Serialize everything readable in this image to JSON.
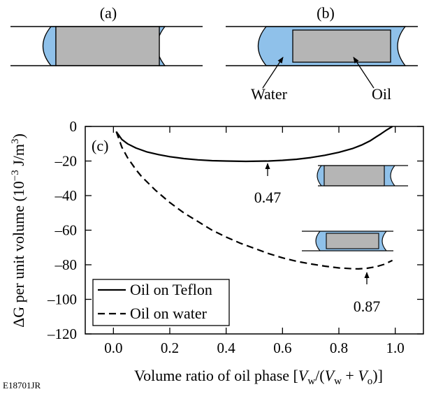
{
  "figure_id": "E18701JR",
  "panels": {
    "a": {
      "label": "(a)"
    },
    "b": {
      "label": "(b)",
      "water_label": "Water",
      "oil_label": "Oil"
    },
    "c": {
      "label": "(c)"
    }
  },
  "colors": {
    "water": "#8fc1ea",
    "oil": "#b5b5b5",
    "frame": "#000000"
  },
  "chart_data": {
    "type": "line",
    "xlabel_parts": {
      "prefix": "Volume ratio of oil phase [",
      "V1": "V",
      "sub1": "w",
      "mid": "/(",
      "V2": "V",
      "sub2": "w",
      "plus": " + ",
      "V3": "V",
      "sub3": "o",
      "suffix": ")]"
    },
    "ylabel_parts": {
      "main": "ΔG per unit volume (10",
      "exp1": "−3",
      "mid": " J/m",
      "exp2": "3",
      "end": ")"
    },
    "xlim": [
      -0.1,
      1.1
    ],
    "ylim": [
      -120,
      0
    ],
    "xticks": [
      0.0,
      0.2,
      0.4,
      0.6,
      0.8,
      1.0
    ],
    "xtick_labels": [
      "0.0",
      "0.2",
      "0.4",
      "0.6",
      "0.8",
      "1.0"
    ],
    "yticks": [
      0,
      -20,
      -40,
      -60,
      -80,
      -100,
      -120
    ],
    "ytick_labels": [
      "0",
      "–20",
      "–40",
      "–60",
      "–80",
      "–100",
      "–120"
    ],
    "legend_position": "bottom-left",
    "series": [
      {
        "name": "Oil on Teflon",
        "style": "solid",
        "x": [
          0.01,
          0.03,
          0.05,
          0.08,
          0.12,
          0.16,
          0.2,
          0.25,
          0.3,
          0.35,
          0.4,
          0.47,
          0.55,
          0.6,
          0.65,
          0.7,
          0.75,
          0.8,
          0.85,
          0.88,
          0.91,
          0.93,
          0.95,
          0.97,
          0.99
        ],
        "y": [
          -3,
          -7.5,
          -10,
          -12.5,
          -14.8,
          -16.3,
          -17.5,
          -18.6,
          -19.3,
          -19.8,
          -20.0,
          -20.2,
          -20.0,
          -19.6,
          -19.0,
          -18.0,
          -16.7,
          -15.0,
          -12.7,
          -10.8,
          -8.4,
          -6.3,
          -4.2,
          -2.0,
          0
        ]
      },
      {
        "name": "Oil on water",
        "style": "dashed",
        "x": [
          0.01,
          0.03,
          0.05,
          0.08,
          0.1,
          0.15,
          0.2,
          0.25,
          0.3,
          0.35,
          0.4,
          0.45,
          0.5,
          0.55,
          0.6,
          0.65,
          0.7,
          0.75,
          0.8,
          0.85,
          0.87,
          0.9,
          0.93,
          0.96,
          0.99
        ],
        "y": [
          -3,
          -12,
          -18,
          -25,
          -29,
          -37,
          -44,
          -50,
          -55,
          -60,
          -64,
          -67.5,
          -70.5,
          -73.5,
          -76,
          -78,
          -79.5,
          -80.8,
          -81.8,
          -82.3,
          -82.4,
          -82.0,
          -81.2,
          -79.8,
          -77.5
        ]
      }
    ],
    "annotations": [
      {
        "text": "0.47",
        "x": 0.47,
        "y": -20
      },
      {
        "text": "0.87",
        "x": 0.87,
        "y": -82.4
      }
    ]
  }
}
